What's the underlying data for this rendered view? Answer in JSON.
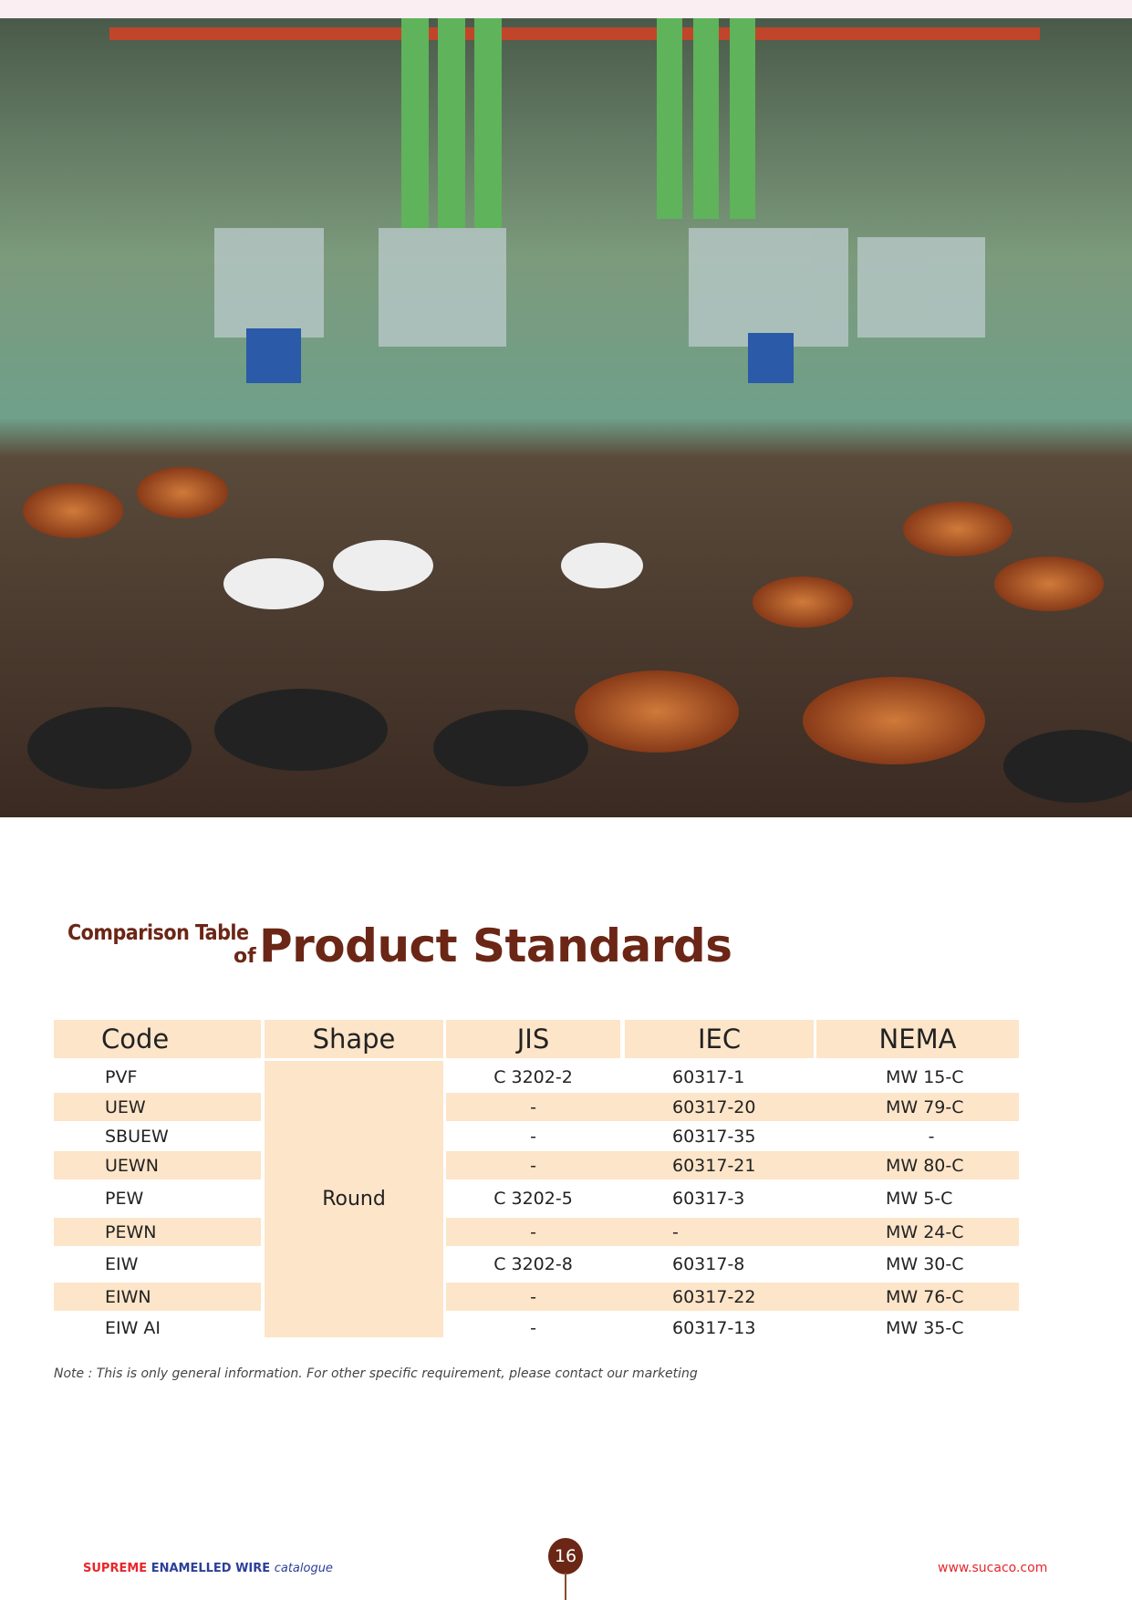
{
  "title": {
    "line1": "Comparison Table",
    "line2": "of",
    "main": "Product Standards"
  },
  "table": {
    "headers": [
      "Code",
      "Shape",
      "JIS",
      "IEC",
      "NEMA"
    ],
    "shape_value": "Round",
    "rows": [
      {
        "code": "PVF",
        "jis": "C 3202-2",
        "iec": "60317-1",
        "nema": "MW 15-C"
      },
      {
        "code": "UEW",
        "jis": "-",
        "iec": "60317-20",
        "nema": "MW  79-C"
      },
      {
        "code": "SBUEW",
        "jis": "-",
        "iec": "60317-35",
        "nema": "-"
      },
      {
        "code": "UEWN",
        "jis": "-",
        "iec": "60317-21",
        "nema": "MW 80-C"
      },
      {
        "code": "PEW",
        "jis": "C 3202-5",
        "iec": "60317-3",
        "nema": "MW  5-C"
      },
      {
        "code": "PEWN",
        "jis": "-",
        "iec": "-",
        "nema": "MW 24-C"
      },
      {
        "code": "EIW",
        "jis": "C 3202-8",
        "iec": "60317-8",
        "nema": "MW 30-C"
      },
      {
        "code": "EIWN",
        "jis": "-",
        "iec": "60317-22",
        "nema": "MW 76-C"
      },
      {
        "code": "EIW AI",
        "jis": "-",
        "iec": "60317-13",
        "nema": "MW 35-C"
      }
    ]
  },
  "note": "Note : This is only general information. For other specific requirement, please contact our marketing",
  "footer": {
    "brand_red": "SUPREME",
    "brand_blue": "ENAMELLED WIRE",
    "brand_tail": "catalogue",
    "page": "16",
    "website": "www.sucaco.com"
  },
  "colors": {
    "title": "#6b2616",
    "table_fill": "#fde5c9",
    "brand_red": "#e8262b",
    "brand_blue": "#2c3f99"
  }
}
